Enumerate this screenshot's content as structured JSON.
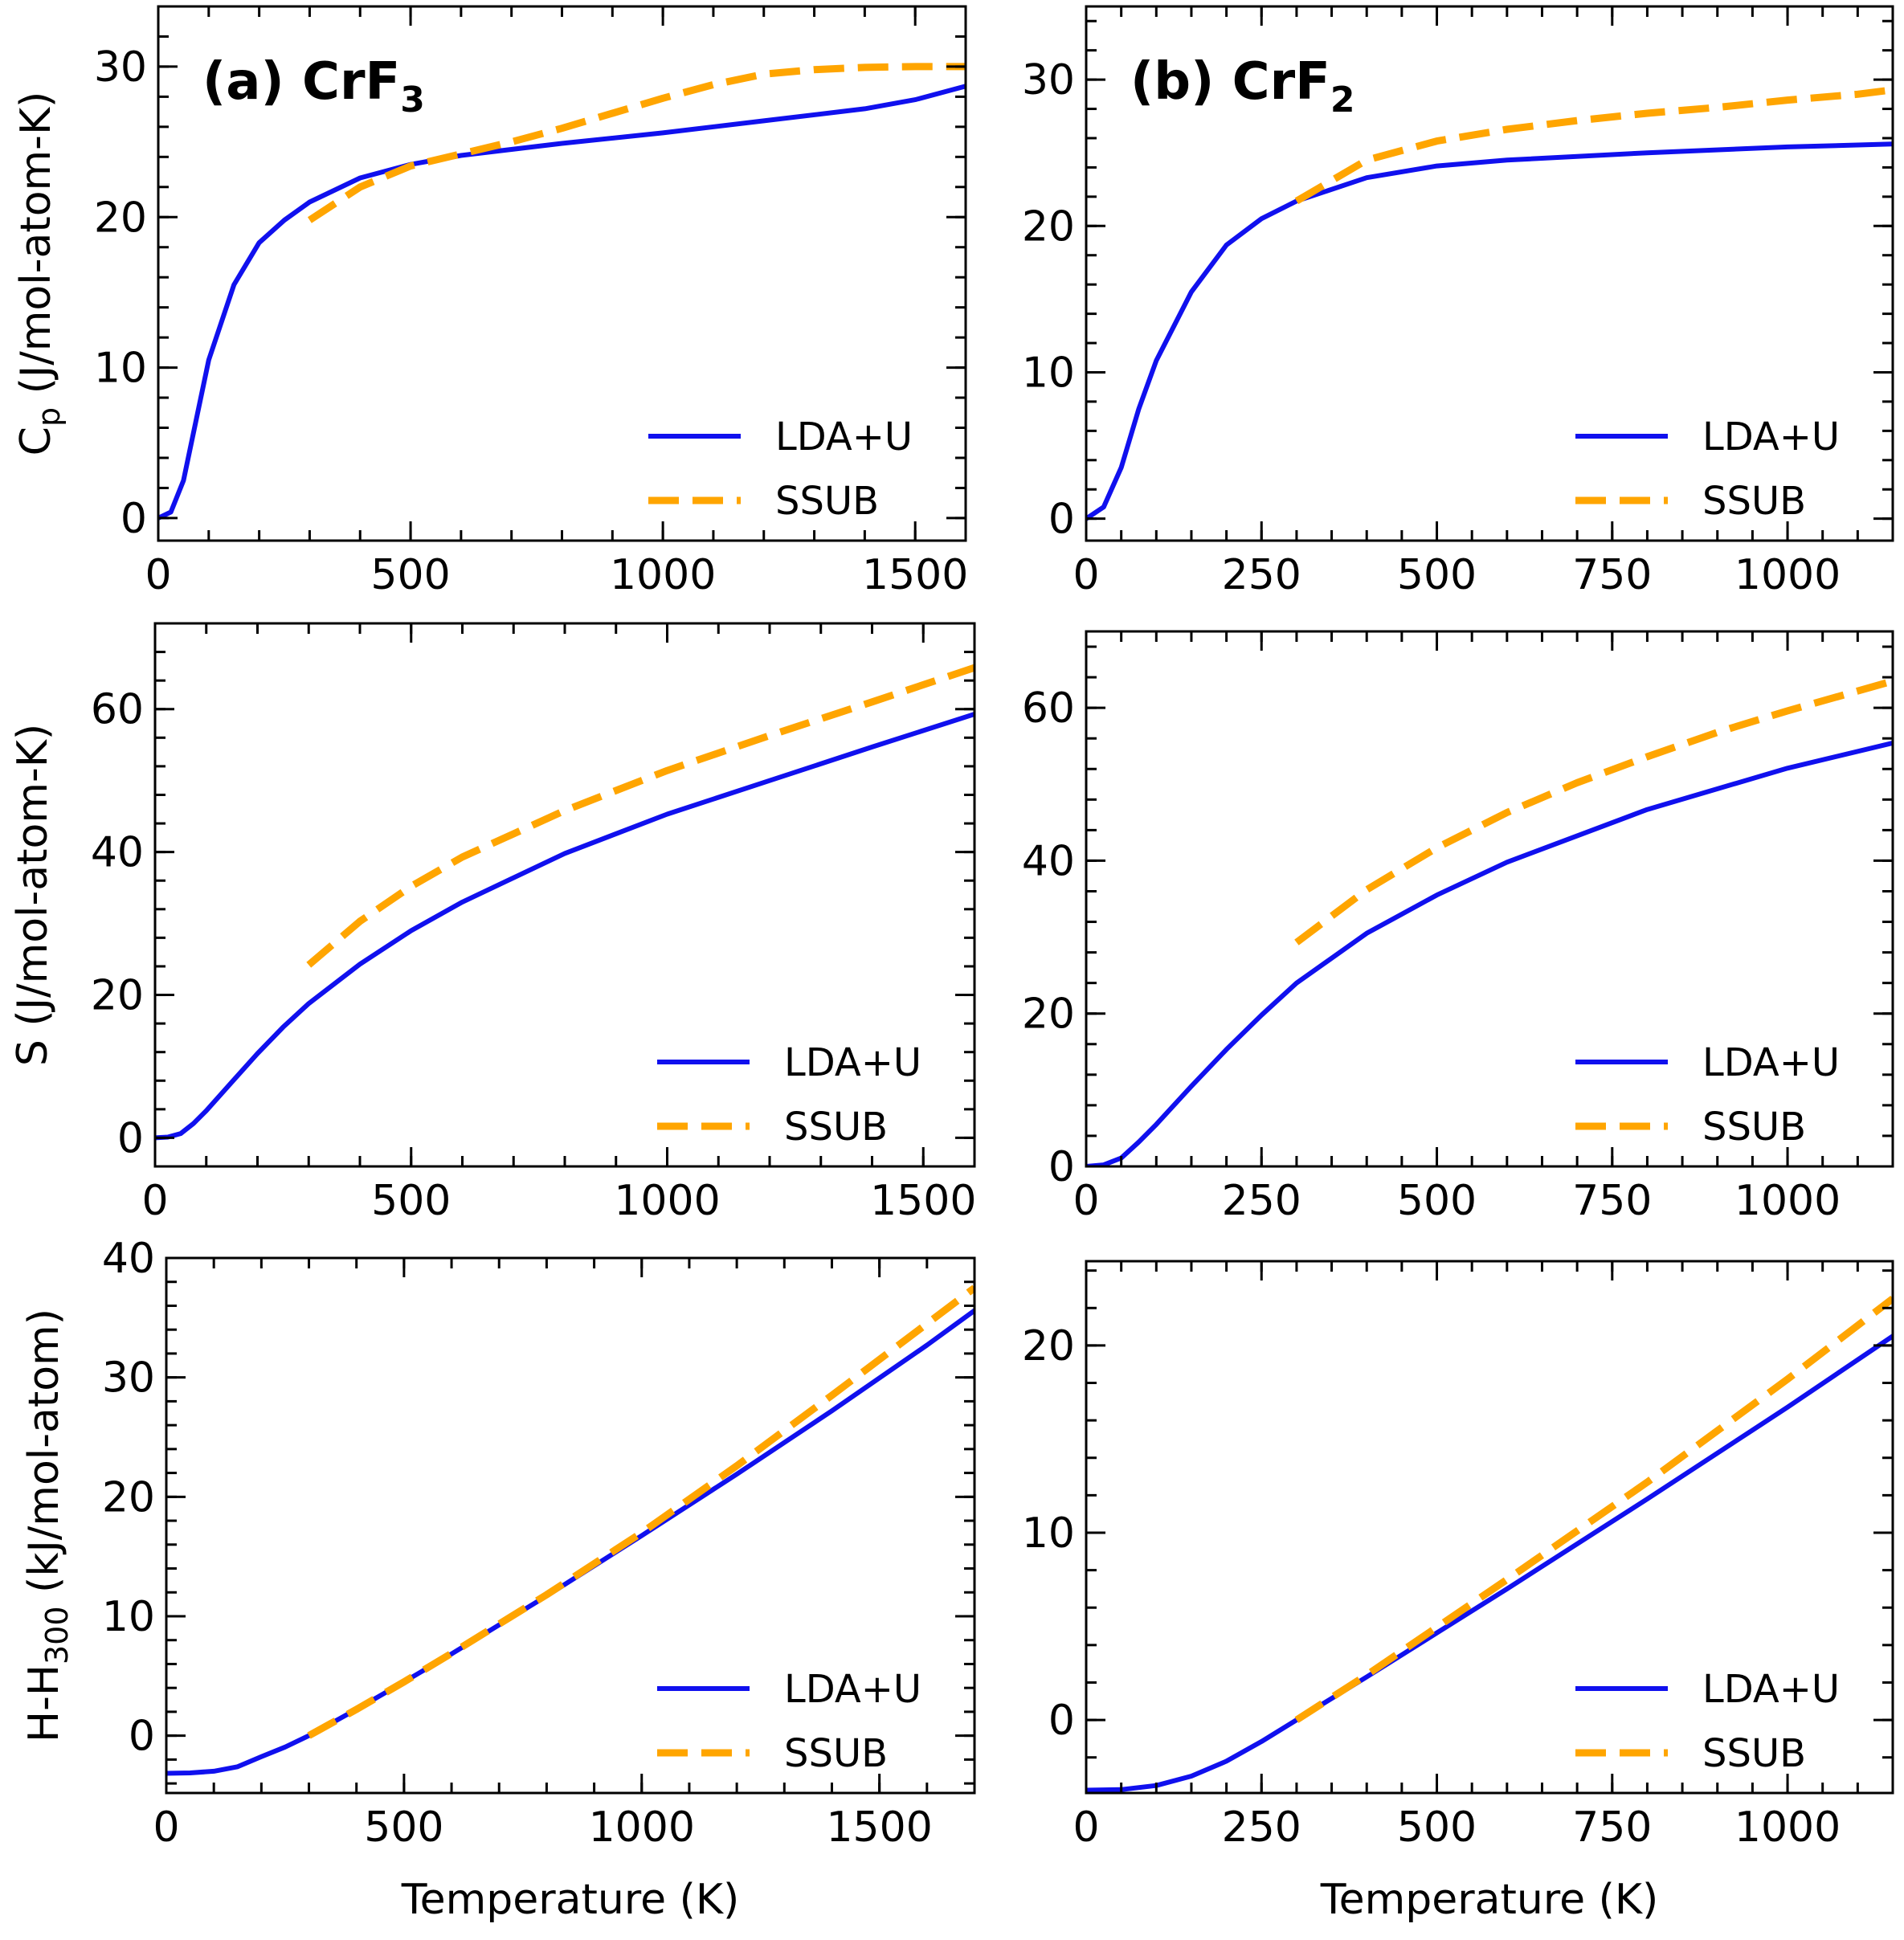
{
  "figure": {
    "xlabel": "Temperature (K)",
    "colors": {
      "LDA+U": "#1010ee",
      "SSUB": "#ffa500"
    },
    "legend": [
      "LDA+U",
      "SSUB"
    ]
  },
  "chart_data": [
    {
      "type": "line",
      "panel": "(a) Cp",
      "title": "(a) CrF3",
      "title_main": "(a) CrF",
      "title_sub": "3",
      "ylabel": "Cp (J/mol-atom-K)",
      "ylabel_main": "C",
      "ylabel_sub": "p",
      "ylabel_rest": " (J/mol-atom-K)",
      "xlabel": "",
      "xlim": [
        0,
        1600
      ],
      "ylim": [
        -1.5,
        34
      ],
      "xticks": [
        0,
        500,
        1000,
        1500
      ],
      "yticks": [
        0,
        10,
        20,
        30
      ],
      "grid": false,
      "legend_position": "lower-right",
      "series": [
        {
          "name": "LDA+U",
          "style": "solid",
          "x": [
            0,
            25,
            50,
            75,
            100,
            150,
            200,
            250,
            300,
            400,
            500,
            600,
            800,
            1000,
            1200,
            1400,
            1500,
            1600
          ],
          "y": [
            0,
            0.4,
            2.5,
            6.5,
            10.5,
            15.5,
            18.3,
            19.8,
            21.0,
            22.6,
            23.5,
            24.1,
            24.9,
            25.6,
            26.4,
            27.2,
            27.8,
            28.7
          ]
        },
        {
          "name": "SSUB",
          "style": "dashed",
          "x": [
            300,
            400,
            500,
            600,
            700,
            800,
            900,
            1000,
            1100,
            1200,
            1300,
            1400,
            1500,
            1600
          ],
          "y": [
            19.8,
            22.0,
            23.4,
            24.2,
            25.0,
            25.9,
            26.9,
            27.9,
            28.8,
            29.5,
            29.8,
            29.95,
            30.0,
            30.0
          ]
        }
      ]
    },
    {
      "type": "line",
      "panel": "(b) Cp",
      "title": "(b) CrF2",
      "title_main": "(b) CrF",
      "title_sub": "2",
      "ylabel": "",
      "xlabel": "",
      "xlim": [
        0,
        1150
      ],
      "ylim": [
        -1.5,
        35
      ],
      "xticks": [
        0,
        250,
        500,
        750,
        1000
      ],
      "yticks": [
        0,
        10,
        20,
        30
      ],
      "grid": false,
      "legend_position": "lower-right",
      "series": [
        {
          "name": "LDA+U",
          "style": "solid",
          "x": [
            0,
            25,
            50,
            75,
            100,
            150,
            200,
            250,
            300,
            400,
            500,
            600,
            800,
            1000,
            1150
          ],
          "y": [
            0,
            0.8,
            3.5,
            7.5,
            10.8,
            15.5,
            18.7,
            20.5,
            21.7,
            23.3,
            24.1,
            24.5,
            25.0,
            25.4,
            25.6
          ]
        },
        {
          "name": "SSUB",
          "style": "dashed",
          "x": [
            300,
            400,
            500,
            600,
            700,
            800,
            900,
            1000,
            1100,
            1150
          ],
          "y": [
            21.7,
            24.5,
            25.8,
            26.6,
            27.2,
            27.7,
            28.1,
            28.6,
            29.0,
            29.3
          ]
        }
      ]
    },
    {
      "type": "line",
      "panel": "(a) S",
      "ylabel": "S (J/mol-atom-K)",
      "xlabel": "",
      "xlim": [
        0,
        1600
      ],
      "ylim": [
        -4,
        72
      ],
      "xticks": [
        0,
        500,
        1000,
        1500
      ],
      "yticks": [
        0,
        20,
        40,
        60
      ],
      "grid": false,
      "legend_position": "lower-right",
      "series": [
        {
          "name": "LDA+U",
          "style": "solid",
          "x": [
            0,
            25,
            50,
            75,
            100,
            150,
            200,
            250,
            300,
            400,
            500,
            600,
            800,
            1000,
            1200,
            1400,
            1600
          ],
          "y": [
            0,
            0.1,
            0.6,
            2.0,
            3.8,
            7.8,
            11.8,
            15.5,
            18.8,
            24.3,
            29.0,
            33.0,
            39.8,
            45.3,
            50.0,
            54.7,
            59.3
          ]
        },
        {
          "name": "SSUB",
          "style": "dashed",
          "x": [
            300,
            400,
            500,
            600,
            800,
            1000,
            1200,
            1400,
            1600
          ],
          "y": [
            24.2,
            30.3,
            35.2,
            39.3,
            45.8,
            51.4,
            56.3,
            61.0,
            65.8
          ]
        }
      ]
    },
    {
      "type": "line",
      "panel": "(b) S",
      "ylabel": "",
      "xlabel": "",
      "xlim": [
        0,
        1150
      ],
      "ylim": [
        0,
        70
      ],
      "xticks": [
        0,
        250,
        500,
        750,
        1000
      ],
      "yticks": [
        0,
        20,
        40,
        60
      ],
      "grid": false,
      "legend_position": "lower-right",
      "series": [
        {
          "name": "LDA+U",
          "style": "solid",
          "x": [
            0,
            25,
            50,
            75,
            100,
            150,
            200,
            250,
            300,
            400,
            500,
            600,
            800,
            1000,
            1150
          ],
          "y": [
            0,
            0.2,
            1.1,
            3.2,
            5.5,
            10.5,
            15.3,
            19.8,
            24.0,
            30.5,
            35.5,
            39.8,
            46.7,
            52.1,
            55.4
          ]
        },
        {
          "name": "SSUB",
          "style": "dashed",
          "x": [
            300,
            400,
            500,
            600,
            700,
            800,
            900,
            1000,
            1100,
            1150
          ],
          "y": [
            29.3,
            36.2,
            41.7,
            46.3,
            50.2,
            53.6,
            56.8,
            59.6,
            62.2,
            63.5
          ]
        }
      ]
    },
    {
      "type": "line",
      "panel": "(a) H",
      "ylabel": "H-H300 (kJ/mol-atom)",
      "ylabel_main": "H-H",
      "ylabel_sub": "300",
      "ylabel_rest": " (kJ/mol-atom)",
      "xlabel": "Temperature (K)",
      "xlim": [
        0,
        1700
      ],
      "ylim": [
        -4.8,
        40
      ],
      "xticks": [
        0,
        500,
        1000,
        1500
      ],
      "yticks": [
        0,
        10,
        20,
        30,
        40
      ],
      "grid": false,
      "legend_position": "lower-right",
      "series": [
        {
          "name": "LDA+U",
          "style": "solid",
          "x": [
            0,
            50,
            100,
            150,
            200,
            250,
            300,
            400,
            500,
            600,
            800,
            1000,
            1200,
            1400,
            1600,
            1700
          ],
          "y": [
            -3.15,
            -3.12,
            -2.98,
            -2.6,
            -1.75,
            -0.95,
            0,
            2.2,
            4.5,
            6.85,
            11.7,
            16.75,
            21.9,
            27.2,
            32.7,
            35.6
          ]
        },
        {
          "name": "SSUB",
          "style": "dashed",
          "x": [
            300,
            400,
            500,
            600,
            800,
            1000,
            1200,
            1400,
            1600,
            1700
          ],
          "y": [
            0,
            2.2,
            4.5,
            6.9,
            11.8,
            17.0,
            22.6,
            28.5,
            34.5,
            37.5
          ]
        }
      ]
    },
    {
      "type": "line",
      "panel": "(b) H",
      "ylabel": "",
      "xlabel": "Temperature (K)",
      "xlim": [
        0,
        1150
      ],
      "ylim": [
        -3.9,
        24.5
      ],
      "xticks": [
        0,
        250,
        500,
        750,
        1000
      ],
      "yticks": [
        0,
        10,
        20
      ],
      "grid": false,
      "legend_position": "lower-right",
      "series": [
        {
          "name": "LDA+U",
          "style": "solid",
          "x": [
            0,
            50,
            100,
            150,
            200,
            250,
            300,
            400,
            500,
            600,
            800,
            1000,
            1150
          ],
          "y": [
            -3.75,
            -3.72,
            -3.5,
            -3.0,
            -2.2,
            -1.15,
            0,
            2.3,
            4.65,
            7.0,
            11.8,
            16.7,
            20.5
          ]
        },
        {
          "name": "SSUB",
          "style": "dashed",
          "x": [
            300,
            400,
            500,
            600,
            800,
            1000,
            1150
          ],
          "y": [
            0,
            2.4,
            4.95,
            7.5,
            12.7,
            18.2,
            22.5
          ]
        }
      ]
    }
  ]
}
